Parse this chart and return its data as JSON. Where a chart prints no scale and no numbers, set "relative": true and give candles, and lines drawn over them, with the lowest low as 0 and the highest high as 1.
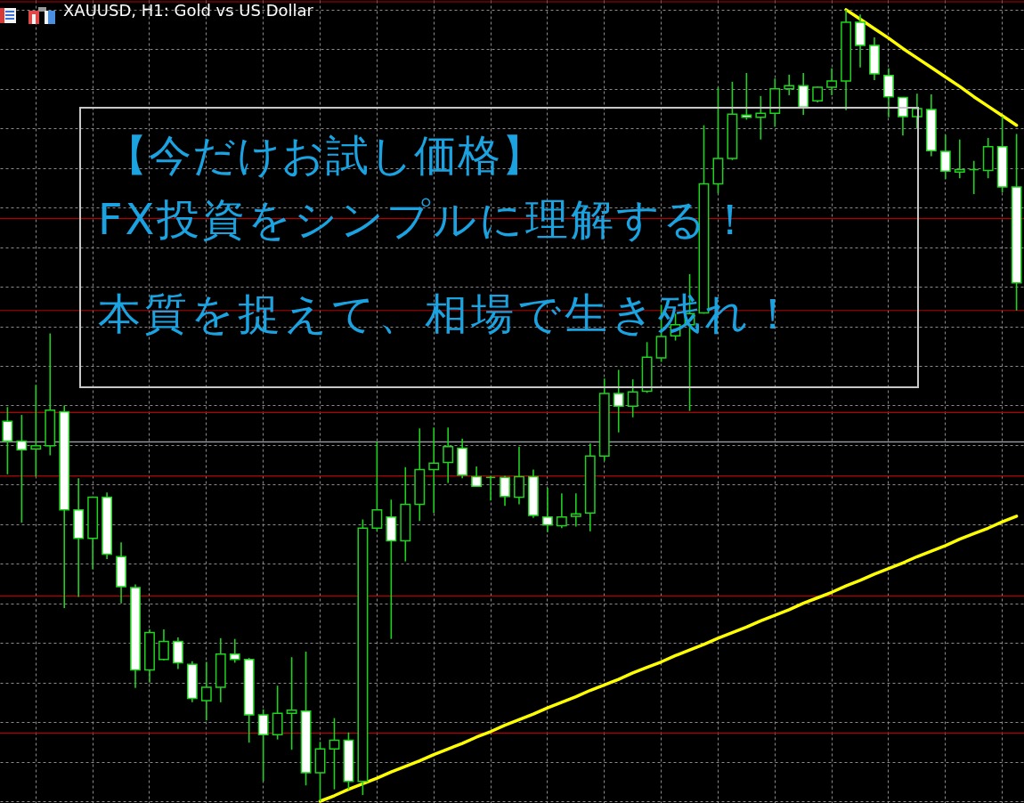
{
  "chart_data": {
    "type": "candlestick",
    "title": "XAUUSD, H1:  Gold vs US Dollar",
    "categories": [
      null,
      null,
      null,
      null,
      null,
      null,
      null,
      null,
      null,
      null,
      null,
      null,
      null,
      null,
      null,
      null,
      null,
      null,
      null,
      null,
      null,
      null,
      null,
      null,
      null,
      null,
      null,
      null,
      null,
      null,
      null,
      null,
      null,
      null,
      null,
      null,
      null,
      null,
      null,
      null,
      null,
      null,
      null,
      null,
      null,
      null,
      null,
      null,
      null,
      null,
      null,
      null,
      null,
      null,
      null,
      null,
      null,
      null,
      null,
      null,
      null,
      null,
      null,
      null,
      null,
      null,
      null,
      null,
      null,
      null,
      null,
      null
    ],
    "ohlc": [
      [
        0.48,
        0.498,
        0.413,
        0.455
      ],
      [
        0.455,
        0.488,
        0.352,
        0.444
      ],
      [
        0.445,
        0.526,
        0.41,
        0.449
      ],
      [
        0.449,
        0.591,
        0.437,
        0.494
      ],
      [
        0.492,
        0.5,
        0.244,
        0.368
      ],
      [
        0.368,
        0.408,
        0.258,
        0.332
      ],
      [
        0.332,
        0.385,
        0.293,
        0.384
      ],
      [
        0.384,
        0.39,
        0.306,
        0.312
      ],
      [
        0.309,
        0.327,
        0.25,
        0.271
      ],
      [
        0.27,
        0.274,
        0.143,
        0.166
      ],
      [
        0.166,
        0.217,
        0.15,
        0.213
      ],
      [
        0.179,
        0.217,
        0.178,
        0.202
      ],
      [
        0.202,
        0.207,
        0.167,
        0.175
      ],
      [
        0.173,
        0.177,
        0.125,
        0.13
      ],
      [
        0.127,
        0.176,
        0.102,
        0.144
      ],
      [
        0.144,
        0.206,
        0.125,
        0.186
      ],
      [
        0.186,
        0.205,
        0.175,
        0.179
      ],
      [
        0.179,
        0.181,
        0.074,
        0.109
      ],
      [
        0.109,
        0.116,
        0.025,
        0.084
      ],
      [
        0.084,
        0.146,
        0.078,
        0.111
      ],
      [
        0.111,
        0.182,
        0.065,
        0.115
      ],
      [
        0.114,
        0.189,
        0.02,
        0.036
      ],
      [
        0.036,
        0.075,
        0.0,
        0.066
      ],
      [
        0.066,
        0.105,
        0.015,
        0.077
      ],
      [
        0.077,
        0.087,
        0.015,
        0.025
      ],
      [
        0.025,
        0.356,
        0.008,
        0.345
      ],
      [
        0.345,
        0.454,
        0.341,
        0.368
      ],
      [
        0.359,
        0.381,
        0.205,
        0.329
      ],
      [
        0.329,
        0.422,
        0.303,
        0.375
      ],
      [
        0.375,
        0.471,
        0.354,
        0.419
      ],
      [
        0.419,
        0.472,
        0.364,
        0.427
      ],
      [
        0.428,
        0.472,
        0.402,
        0.448
      ],
      [
        0.446,
        0.458,
        0.408,
        0.412
      ],
      [
        0.41,
        0.423,
        0.398,
        0.398
      ],
      [
        0.409,
        0.411,
        0.38,
        0.409
      ],
      [
        0.409,
        0.411,
        0.373,
        0.385
      ],
      [
        0.384,
        0.448,
        0.375,
        0.41
      ],
      [
        0.41,
        0.419,
        0.358,
        0.361
      ],
      [
        0.359,
        0.396,
        0.34,
        0.349
      ],
      [
        0.348,
        0.389,
        0.345,
        0.359
      ],
      [
        0.36,
        0.389,
        0.347,
        0.363
      ],
      [
        0.364,
        0.452,
        0.341,
        0.436
      ],
      [
        0.436,
        0.534,
        0.43,
        0.515
      ],
      [
        0.515,
        0.545,
        0.466,
        0.499
      ],
      [
        0.499,
        0.533,
        0.485,
        0.517
      ],
      [
        0.518,
        0.58,
        0.516,
        0.561
      ],
      [
        0.56,
        0.627,
        0.555,
        0.587
      ],
      [
        0.588,
        0.616,
        0.582,
        0.602
      ],
      [
        0.602,
        0.666,
        0.493,
        0.616
      ],
      [
        0.617,
        0.854,
        0.616,
        0.78
      ],
      [
        0.78,
        0.902,
        0.768,
        0.812
      ],
      [
        0.812,
        0.909,
        0.81,
        0.868
      ],
      [
        0.867,
        0.92,
        0.861,
        0.864
      ],
      [
        0.864,
        0.891,
        0.836,
        0.869
      ],
      [
        0.869,
        0.913,
        0.852,
        0.9
      ],
      [
        0.9,
        0.918,
        0.892,
        0.904
      ],
      [
        0.904,
        0.92,
        0.867,
        0.877
      ],
      [
        0.885,
        0.903,
        0.883,
        0.902
      ],
      [
        0.902,
        0.926,
        0.892,
        0.91
      ],
      [
        0.91,
        1.0,
        0.873,
        0.984
      ],
      [
        0.984,
        0.994,
        0.927,
        0.955
      ],
      [
        0.955,
        0.965,
        0.911,
        0.919
      ],
      [
        0.917,
        0.926,
        0.864,
        0.89
      ],
      [
        0.889,
        0.889,
        0.841,
        0.865
      ],
      [
        0.865,
        0.894,
        0.85,
        0.875
      ],
      [
        0.874,
        0.893,
        0.815,
        0.822
      ],
      [
        0.821,
        0.842,
        0.786,
        0.796
      ],
      [
        0.795,
        0.836,
        0.787,
        0.798
      ],
      [
        0.798,
        0.809,
        0.767,
        0.798
      ],
      [
        0.797,
        0.838,
        0.787,
        0.827
      ],
      [
        0.827,
        0.865,
        0.769,
        0.776
      ],
      [
        0.776,
        0.843,
        0.62,
        0.655
      ]
    ],
    "color": "#1ed21e",
    "colors": [
      "#ffffff",
      "#ffffff",
      "#000000",
      "#000000",
      "#ffffff",
      "#ffffff",
      "#000000",
      "#ffffff",
      "#ffffff",
      "#ffffff",
      "#000000",
      "#000000",
      "#ffffff",
      "#ffffff",
      "#000000",
      "#000000",
      "#ffffff",
      "#ffffff",
      "#ffffff",
      "#000000",
      "#000000",
      "#ffffff",
      "#000000",
      "#000000",
      "#ffffff",
      "#000000",
      "#000000",
      "#ffffff",
      "#000000",
      "#000000",
      "#000000",
      "#000000",
      "#ffffff",
      "#ffffff",
      "#1ed21e",
      "#ffffff",
      "#000000",
      "#ffffff",
      "#ffffff",
      "#000000",
      "#000000",
      "#000000",
      "#000000",
      "#ffffff",
      "#000000",
      "#000000",
      "#000000",
      "#000000",
      "#000000",
      "#000000",
      "#000000",
      "#000000",
      "#ffffff",
      "#000000",
      "#000000",
      "#000000",
      "#ffffff",
      "#000000",
      "#000000",
      "#000000",
      "#ffffff",
      "#ffffff",
      "#ffffff",
      "#ffffff",
      "#000000",
      "#ffffff",
      "#ffffff",
      "#000000",
      "#1ed21e",
      "#000000",
      "#ffffff",
      "#ffffff"
    ],
    "series": [
      {
        "type": "line",
        "color": "#ffff00",
        "values": [
          null,
          null,
          null,
          null,
          null,
          null,
          null,
          null,
          null,
          null,
          null,
          null,
          null,
          null,
          null,
          null,
          null,
          null,
          null,
          null,
          null,
          null,
          0.0,
          0.007,
          0.015,
          0.022,
          0.029,
          0.037,
          0.044,
          0.051,
          0.059,
          0.066,
          0.073,
          0.081,
          0.088,
          0.096,
          0.103,
          0.11,
          0.118,
          0.125,
          0.132,
          0.14,
          0.147,
          0.154,
          0.162,
          0.169,
          0.176,
          0.184,
          0.191,
          0.198,
          0.206,
          0.213,
          0.22,
          0.228,
          0.235,
          0.242,
          0.25,
          0.257,
          0.264,
          0.272,
          0.279,
          0.287,
          0.294,
          0.301,
          0.309,
          0.316,
          0.323,
          0.331,
          0.338,
          0.345,
          0.353,
          0.36
        ]
      },
      {
        "type": "line",
        "color": "#ffff00",
        "values": [
          null,
          null,
          null,
          null,
          null,
          null,
          null,
          null,
          null,
          null,
          null,
          null,
          null,
          null,
          null,
          null,
          null,
          null,
          null,
          null,
          null,
          null,
          null,
          null,
          null,
          null,
          null,
          null,
          null,
          null,
          null,
          null,
          null,
          null,
          null,
          null,
          null,
          null,
          null,
          null,
          null,
          null,
          null,
          null,
          null,
          null,
          null,
          null,
          null,
          null,
          null,
          null,
          null,
          null,
          null,
          null,
          null,
          null,
          null,
          1.0,
          0.988,
          0.976,
          0.964,
          0.951,
          0.939,
          0.927,
          0.915,
          0.903,
          0.89,
          0.878,
          0.866,
          0.854
        ]
      }
    ],
    "ref_lines": [
      {
        "axis": "y",
        "value": 1.01,
        "color": "#b40000"
      },
      {
        "axis": "y",
        "value": 0.736,
        "color": "#b40000"
      },
      {
        "axis": "y",
        "value": 0.62,
        "color": "#b40000"
      },
      {
        "axis": "y",
        "value": 0.491,
        "color": "#b40000"
      },
      {
        "axis": "y",
        "value": 0.454,
        "color": "#a0a6ae"
      },
      {
        "axis": "y",
        "value": 0.411,
        "color": "#b40000"
      },
      {
        "axis": "y",
        "value": 0.259,
        "color": "#b40000"
      },
      {
        "axis": "y",
        "value": 0.086,
        "color": "#b40000"
      }
    ],
    "annotations": [
      "【今だけお試し価格】",
      "FX投資をシンプルに理解する！",
      "本質を捉えて、相場で生き残れ！"
    ],
    "relative": true,
    "tick_labels": false,
    "grid": true
  }
}
